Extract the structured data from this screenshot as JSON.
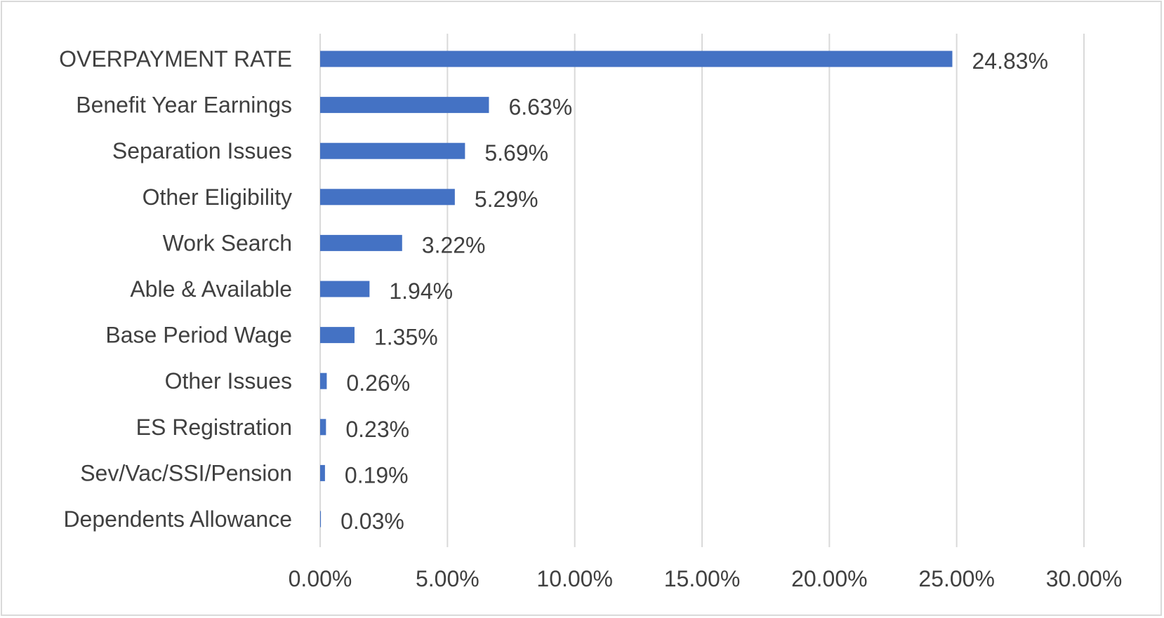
{
  "chart_data": {
    "type": "bar",
    "orientation": "horizontal",
    "title": "",
    "xlabel": "",
    "ylabel": "",
    "categories": [
      "OVERPAYMENT RATE",
      "Benefit Year Earnings",
      "Separation Issues",
      "Other Eligibility",
      "Work Search",
      "Able & Available",
      "Base Period Wage",
      "Other Issues",
      "ES Registration",
      "Sev/Vac/SSI/Pension",
      "Dependents Allowance"
    ],
    "values": [
      24.83,
      6.63,
      5.69,
      5.29,
      3.22,
      1.94,
      1.35,
      0.26,
      0.23,
      0.19,
      0.03
    ],
    "data_labels": [
      "24.83%",
      "6.63%",
      "5.69%",
      "5.29%",
      "3.22%",
      "1.94%",
      "1.35%",
      "0.26%",
      "0.23%",
      "0.19%",
      "0.03%"
    ],
    "xlim": [
      0,
      30
    ],
    "x_ticks": [
      0,
      5,
      10,
      15,
      20,
      25,
      30
    ],
    "x_tick_labels": [
      "0.00%",
      "5.00%",
      "10.00%",
      "15.00%",
      "20.00%",
      "25.00%",
      "30.00%"
    ],
    "grid": true,
    "legend": "none",
    "bar_color": "#4472C4"
  }
}
